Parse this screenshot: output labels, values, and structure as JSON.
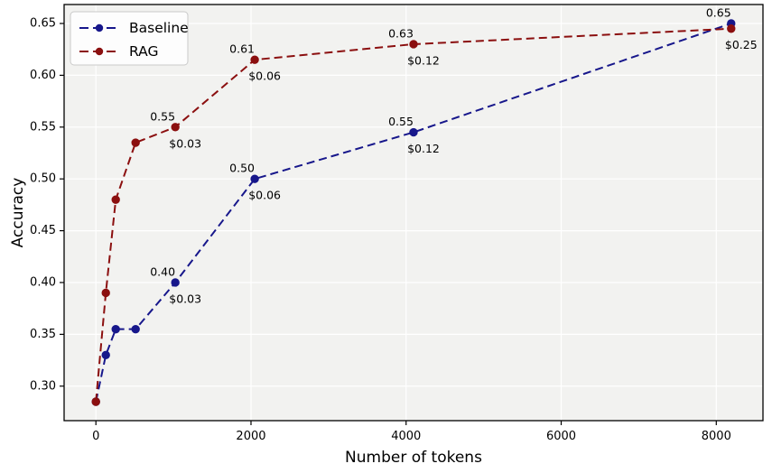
{
  "chart_data": {
    "type": "line",
    "title": "",
    "xlabel": "Number of tokens",
    "ylabel": "Accuracy",
    "x": [
      0,
      128,
      256,
      512,
      1024,
      2048,
      4096,
      8192
    ],
    "series": [
      {
        "name": "Baseline",
        "color": "#17178b",
        "linestyle": "dashed",
        "marker": "circle",
        "values": [
          0.285,
          0.33,
          0.355,
          0.355,
          0.4,
          0.5,
          0.545,
          0.65
        ]
      },
      {
        "name": "RAG",
        "color": "#8b0f0f",
        "linestyle": "dashed",
        "marker": "circle",
        "values": [
          0.285,
          0.39,
          0.48,
          0.535,
          0.55,
          0.615,
          0.63,
          0.645
        ]
      }
    ],
    "annotations": [
      {
        "series": "Baseline",
        "x": 1024,
        "value": "0.40",
        "cost": "$0.03"
      },
      {
        "series": "Baseline",
        "x": 2048,
        "value": "0.50",
        "cost": "$0.06"
      },
      {
        "series": "Baseline",
        "x": 4096,
        "value": "0.55",
        "cost": "$0.12"
      },
      {
        "series": "Baseline",
        "x": 8192,
        "value": "0.65",
        "cost": ""
      },
      {
        "series": "RAG",
        "x": 1024,
        "value": "0.55",
        "cost": "$0.03"
      },
      {
        "series": "RAG",
        "x": 2048,
        "value": "0.61",
        "cost": "$0.06"
      },
      {
        "series": "RAG",
        "x": 4096,
        "value": "0.63",
        "cost": "$0.12"
      },
      {
        "series": "RAG",
        "x": 8192,
        "value": "",
        "cost": "$0.25"
      }
    ],
    "x_ticks": [
      0,
      2000,
      4000,
      6000,
      8000
    ],
    "x_tick_labels": [
      "0",
      "2000",
      "4000",
      "6000",
      "8000"
    ],
    "y_ticks": [
      0.3,
      0.35,
      0.4,
      0.45,
      0.5,
      0.55,
      0.6,
      0.65
    ],
    "y_tick_labels": [
      "0.30",
      "0.35",
      "0.40",
      "0.45",
      "0.50",
      "0.55",
      "0.60",
      "0.65"
    ],
    "xlim": [
      -410,
      8602
    ],
    "ylim": [
      0.2667,
      0.6683
    ],
    "grid": true,
    "legend": {
      "position": "upper left",
      "entries": [
        "Baseline",
        "RAG"
      ]
    },
    "colors": {
      "figure_bg": "#ffffff",
      "plot_bg": "#f2f2f0",
      "grid": "#ffffff",
      "spine": "#000000",
      "text": "#000000",
      "legend_bg": "#fdfdfd",
      "legend_border": "#c9c9c9"
    }
  }
}
